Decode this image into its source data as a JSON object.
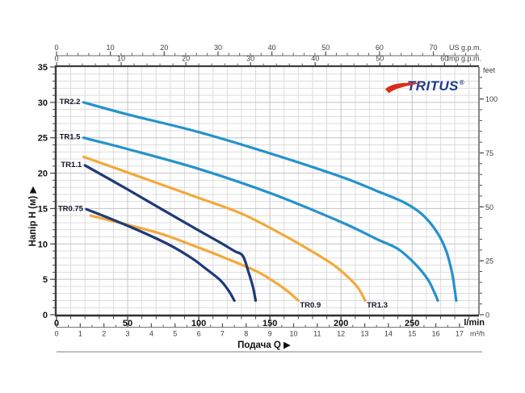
{
  "logo": {
    "text": "TRITUS",
    "reg": "®",
    "text_color": "#1c3a8f",
    "swoosh_color": "#da2c1c"
  },
  "colors": {
    "light_blue": "#2492cc",
    "navy": "#1f3a78",
    "orange": "#f2a93b",
    "grid_minor": "#dcdcdc",
    "grid_major": "#c3c3c3",
    "frame": "#3d3d3d",
    "tick": "#4a4a4a"
  },
  "chart_data": {
    "type": "line",
    "xlabel": "Подача Q",
    "xlabel_arrow": "▶",
    "ylabel": "Напір H (м)",
    "ylabel_arrow": "▶",
    "grid": true,
    "xlim_lmin": [
      0,
      297
    ],
    "ylim_m": [
      0,
      35
    ],
    "x_axes": [
      {
        "id": "lmin",
        "unit": "l/min",
        "ticks": [
          0,
          50,
          100,
          150,
          200,
          250
        ],
        "minor_step": 10,
        "minor_max": 290,
        "lmin_per_unit": 1
      },
      {
        "id": "m3h",
        "unit": "m³/h",
        "ticks": [
          0,
          1,
          2,
          3,
          4,
          5,
          6,
          7,
          8,
          9,
          10,
          11,
          12,
          13,
          14,
          15,
          16,
          17
        ],
        "minor_step": 0.5,
        "minor_max": 17,
        "lmin_per_unit": 16.6667
      },
      {
        "id": "us_gpm",
        "unit": "US g.p.m.",
        "ticks": [
          0,
          10,
          20,
          30,
          40,
          50,
          60,
          70
        ],
        "minor_step": 2,
        "minor_max": 78,
        "lmin_per_unit": 3.785
      },
      {
        "id": "imp_gpm",
        "unit": "Imp g.p.m.",
        "ticks": [
          0,
          10,
          20,
          30,
          40,
          50,
          60
        ],
        "minor_step": 2,
        "minor_max": 64,
        "lmin_per_unit": 4.546
      }
    ],
    "y_axes": [
      {
        "id": "m",
        "unit": "",
        "ticks": [
          0,
          5,
          10,
          15,
          20,
          25,
          30,
          35
        ],
        "minor_step": 1,
        "minor_max": 35,
        "m_per_unit": 1
      },
      {
        "id": "feet",
        "unit": "feet",
        "ticks": [
          0,
          25,
          50,
          75,
          100
        ],
        "minor_step": 5,
        "minor_max": 110,
        "m_per_unit": 0.3048
      }
    ],
    "series": [
      {
        "name": "TR1.3",
        "color": "#f2a93b",
        "label_pos": "end",
        "points": [
          [
            19,
            22.3
          ],
          [
            50,
            20.1
          ],
          [
            100,
            16.5
          ],
          [
            131,
            14.2
          ],
          [
            160,
            11.2
          ],
          [
            180,
            8.9
          ],
          [
            195,
            7.0
          ],
          [
            205,
            5.3
          ],
          [
            212,
            3.8
          ],
          [
            217,
            2
          ]
        ]
      },
      {
        "name": "TR0.9",
        "color": "#f2a93b",
        "label_pos": "end",
        "points": [
          [
            24,
            14.0
          ],
          [
            50,
            12.7
          ],
          [
            74,
            11.4
          ],
          [
            101,
            9.4
          ],
          [
            120,
            7.9
          ],
          [
            140,
            6.2
          ],
          [
            152,
            4.8
          ],
          [
            162,
            3.4
          ],
          [
            170,
            2
          ]
        ]
      },
      {
        "name": "TR2.2",
        "color": "#2492cc",
        "label_pos": "start",
        "points": [
          [
            19,
            30
          ],
          [
            50,
            28.3
          ],
          [
            100,
            25.8
          ],
          [
            150,
            22.8
          ],
          [
            200,
            19.5
          ],
          [
            225,
            17.5
          ],
          [
            245,
            15.8
          ],
          [
            258,
            14.0
          ],
          [
            268,
            11.5
          ],
          [
            274,
            9.0
          ],
          [
            278,
            6.0
          ],
          [
            280,
            3.5
          ],
          [
            281,
            2
          ]
        ]
      },
      {
        "name": "TR1.5",
        "color": "#2492cc",
        "label_pos": "start",
        "points": [
          [
            19,
            25
          ],
          [
            50,
            23.4
          ],
          [
            100,
            20.6
          ],
          [
            150,
            17.2
          ],
          [
            200,
            13.1
          ],
          [
            225,
            10.7
          ],
          [
            240,
            9.3
          ],
          [
            252,
            7.2
          ],
          [
            261,
            5.0
          ],
          [
            266,
            3.0
          ],
          [
            268,
            2
          ]
        ]
      },
      {
        "name": "TR1.1",
        "color": "#1f3a78",
        "label_pos": "start",
        "points": [
          [
            20,
            21.1
          ],
          [
            50,
            17.7
          ],
          [
            74,
            14.9
          ],
          [
            100,
            11.9
          ],
          [
            115,
            10.2
          ],
          [
            125,
            9.0
          ],
          [
            131,
            8.3
          ],
          [
            135,
            6.0
          ],
          [
            138,
            4.0
          ],
          [
            140,
            2
          ]
        ]
      },
      {
        "name": "TR0.75",
        "color": "#1f3a78",
        "label_pos": "start",
        "points": [
          [
            21,
            14.9
          ],
          [
            40,
            13.4
          ],
          [
            60,
            11.7
          ],
          [
            80,
            9.8
          ],
          [
            95,
            8.0
          ],
          [
            105,
            6.5
          ],
          [
            115,
            4.9
          ],
          [
            121,
            3.4
          ],
          [
            125,
            2
          ]
        ]
      }
    ]
  }
}
